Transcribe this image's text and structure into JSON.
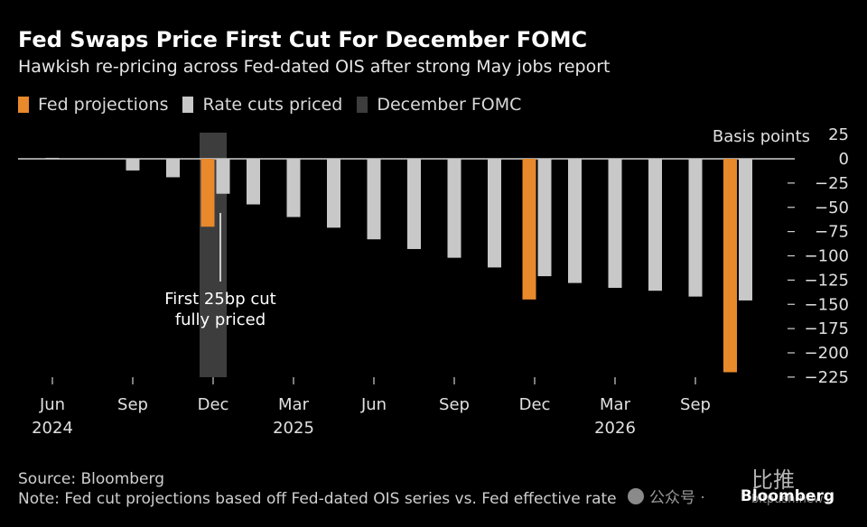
{
  "header": {
    "title": "Fed Swaps Price First Cut For December FOMC",
    "subtitle": "Hawkish re-pricing across Fed-dated OIS after strong May jobs report"
  },
  "legend": [
    {
      "label": "Fed projections",
      "color": "#e8892b"
    },
    {
      "label": "Rate cuts priced",
      "color": "#c8c8c8"
    },
    {
      "label": "December FOMC",
      "color": "#3d3d3d"
    }
  ],
  "chart_data": {
    "type": "bar",
    "title": "Fed Swaps Price First Cut For December FOMC",
    "ylabel": "Basis points",
    "ylim": [
      -225,
      25
    ],
    "yticks": [
      25,
      0,
      -25,
      -50,
      -75,
      -100,
      -125,
      -150,
      -175,
      -200,
      -225
    ],
    "x_tick_labels": [
      {
        "label": "Jun",
        "year": "2024",
        "slot": 1
      },
      {
        "label": "Sep",
        "year": "",
        "slot": 3
      },
      {
        "label": "Dec",
        "year": "",
        "slot": 5
      },
      {
        "label": "Mar",
        "year": "2025",
        "slot": 7
      },
      {
        "label": "Jun",
        "year": "",
        "slot": 9
      },
      {
        "label": "Sep",
        "year": "",
        "slot": 11
      },
      {
        "label": "Dec",
        "year": "",
        "slot": 13
      },
      {
        "label": "Mar",
        "year": "2026",
        "slot": 15
      },
      {
        "label": "Sep",
        "year": "",
        "slot": 17
      }
    ],
    "highlight_slot": 5,
    "series": [
      {
        "name": "Rate cuts priced",
        "color": "#c8c8c8",
        "points": [
          {
            "slot": 1,
            "value": 1
          },
          {
            "slot": 2,
            "value": 0
          },
          {
            "slot": 3,
            "value": -12
          },
          {
            "slot": 4,
            "value": -19
          },
          {
            "slot": 5,
            "value": -36
          },
          {
            "slot": 6,
            "value": -47
          },
          {
            "slot": 7,
            "value": -60
          },
          {
            "slot": 8,
            "value": -71
          },
          {
            "slot": 9,
            "value": -83
          },
          {
            "slot": 10,
            "value": -93
          },
          {
            "slot": 11,
            "value": -102
          },
          {
            "slot": 12,
            "value": -112
          },
          {
            "slot": 13,
            "value": -121
          },
          {
            "slot": 14,
            "value": -128
          },
          {
            "slot": 15,
            "value": -133
          },
          {
            "slot": 16,
            "value": -136
          },
          {
            "slot": 17,
            "value": -142
          },
          {
            "slot": 18,
            "value": -146
          }
        ]
      },
      {
        "name": "Fed projections",
        "color": "#e8892b",
        "points": [
          {
            "slot": 5,
            "value": -70
          },
          {
            "slot": 13,
            "value": -145
          },
          {
            "slot": 18,
            "value": -220
          }
        ]
      }
    ],
    "annotation": {
      "line1": "First 25bp cut",
      "line2": "fully priced"
    }
  },
  "footer": {
    "source": "Source: Bloomberg",
    "note": "Note: Fed cut projections based off Fed-dated OIS series vs. Fed effective rate"
  },
  "brand": "Bloomberg",
  "watermark": {
    "text": "公众号 ·",
    "big": "比推",
    "url": "bitpush.news"
  }
}
